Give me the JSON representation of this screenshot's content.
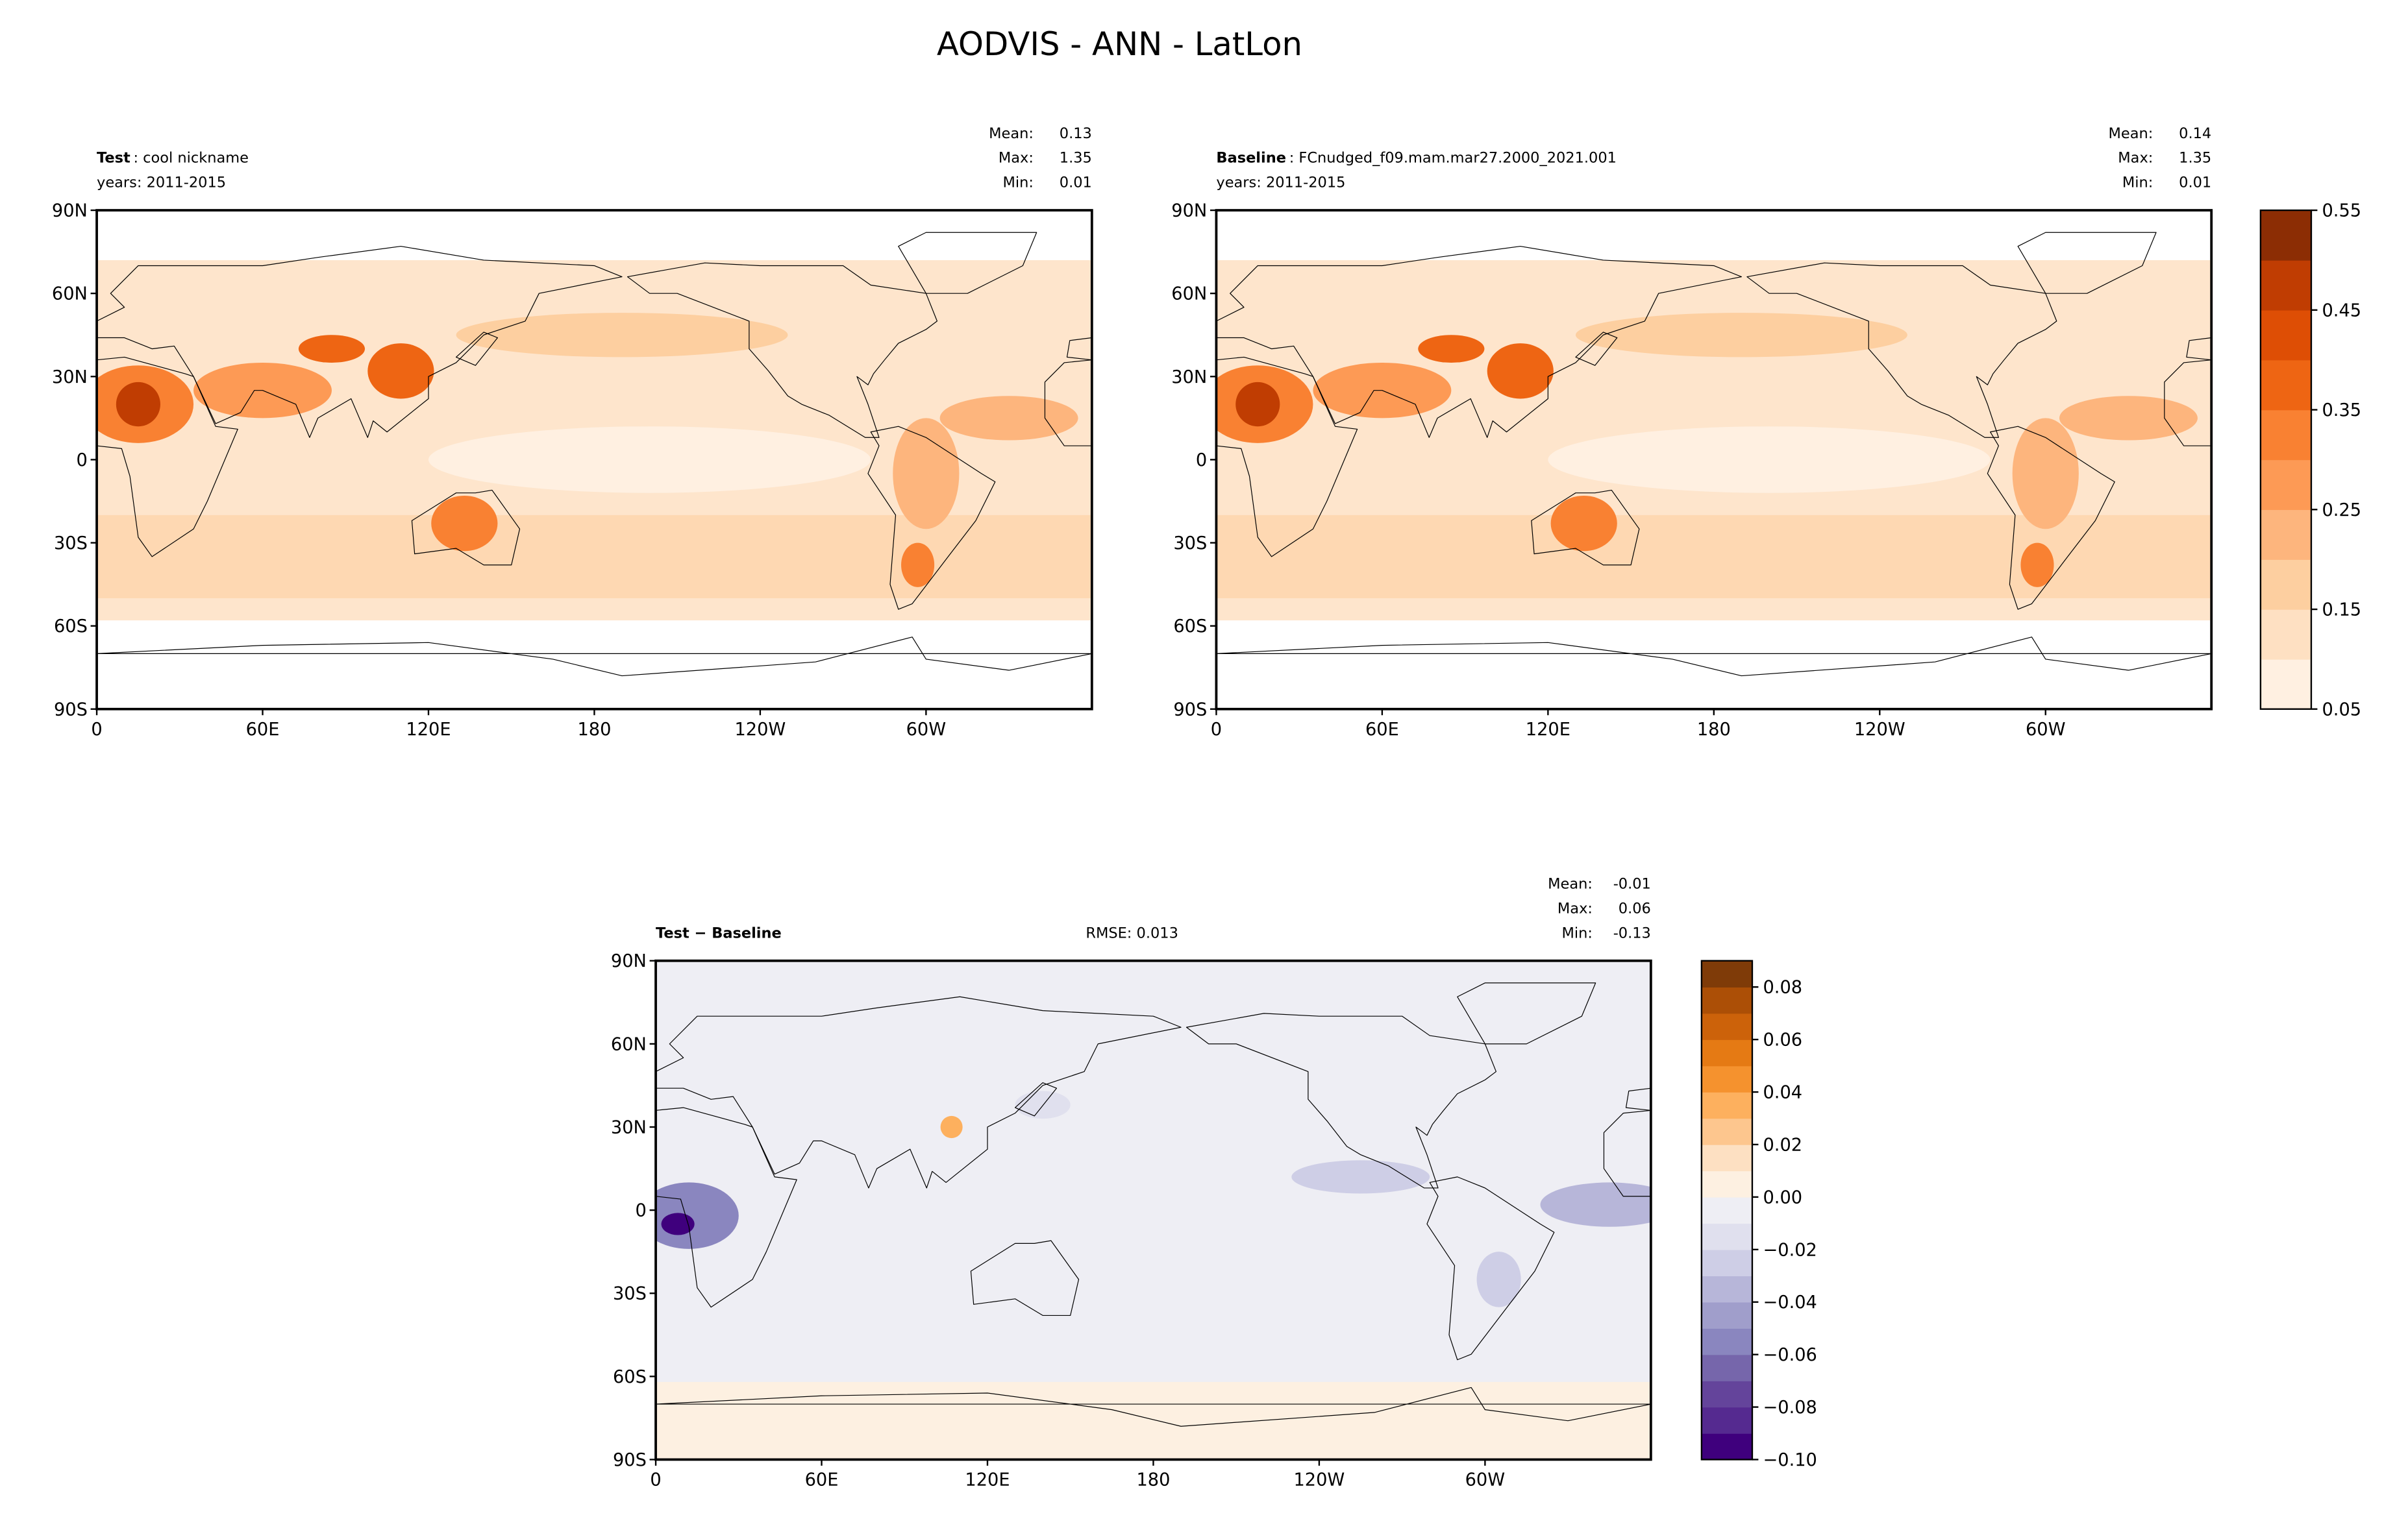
{
  "title": "AODVIS - ANN - LatLon",
  "xlim": [
    0,
    360
  ],
  "ylim": [
    -90,
    90
  ],
  "lon_ticks": [
    0,
    {
      "value": 60,
      "label": "60E"
    },
    {
      "value": 120,
      "label": "120E"
    },
    180,
    {
      "value": 240,
      "label": "120W"
    },
    {
      "value": 300,
      "label": "60W"
    }
  ],
  "lat_ticks": [
    {
      "value": 90,
      "label": "90N"
    },
    {
      "value": 60,
      "label": "60N"
    },
    {
      "value": 30,
      "label": "30N"
    },
    0,
    {
      "value": -30,
      "label": "30S"
    },
    {
      "value": -60,
      "label": "60S"
    },
    {
      "value": -90,
      "label": "90S"
    }
  ],
  "panels": [
    {
      "heading": "Test",
      "label": ": cool nickname",
      "years": "years: 2011-2015",
      "field": "fieldA",
      "colorbar": 0,
      "stats": [
        {
          "label": "Mean:",
          "value": 0.13
        },
        {
          "label": "Max:",
          "value": 1.35
        },
        {
          "label": "Min:",
          "value": 0.01
        }
      ]
    },
    {
      "heading": "Baseline",
      "label": ": FCnudged_f09.mam.mar27.2000_2021.001",
      "years": "years: 2011-2015",
      "field": "fieldA",
      "colorbar": 0,
      "stats": [
        {
          "label": "Mean:",
          "value": 0.14
        },
        {
          "label": "Max:",
          "value": 1.35
        },
        {
          "label": "Min:",
          "value": 0.01
        }
      ]
    },
    {
      "heading": "Test − Baseline",
      "rmse": {
        "label": "RMSE:",
        "value": 0.013
      },
      "field": "fieldB",
      "colorbar": 1,
      "stats": [
        {
          "label": "Mean:",
          "value": -0.01
        },
        {
          "label": "Max:",
          "value": 0.06
        },
        {
          "label": "Min:",
          "value": -0.13
        }
      ]
    }
  ],
  "colorbars": [
    {
      "lim": [
        0.05,
        0.55
      ],
      "ticks": [
        0.05,
        0.15,
        0.25,
        0.35,
        0.45,
        0.55
      ],
      "colors": [
        "#fff0e1",
        "#fee0c2",
        "#fdcfa0",
        "#fdb57d",
        "#fd9a55",
        "#f98132",
        "#ee6513",
        "#de4e05",
        "#c03d02",
        "#8c2d04"
      ]
    },
    {
      "lim": [
        -0.1,
        0.09
      ],
      "ticks": [
        {
          "value": -0.1,
          "label": "−0.10"
        },
        {
          "value": -0.08,
          "label": "−0.08"
        },
        {
          "value": -0.06,
          "label": "−0.06"
        },
        {
          "value": -0.04,
          "label": "−0.04"
        },
        {
          "value": -0.02,
          "label": "−0.02"
        },
        {
          "value": 0,
          "label": "0.00"
        },
        0.02,
        0.04,
        0.06,
        0.08
      ],
      "colors": [
        "#3f007d",
        "#552a90",
        "#64449b",
        "#7666ab",
        "#8a86bf",
        "#a09ecb",
        "#b7b6d9",
        "#cecee6",
        "#e0e0ee",
        "#eeeef4",
        "#fdf0e1",
        "#fde0c2",
        "#fdc68e",
        "#fdb05e",
        "#f5922e",
        "#e57a14",
        "#cc620a",
        "#ac4f06",
        "#7f3b08"
      ]
    }
  ]
}
